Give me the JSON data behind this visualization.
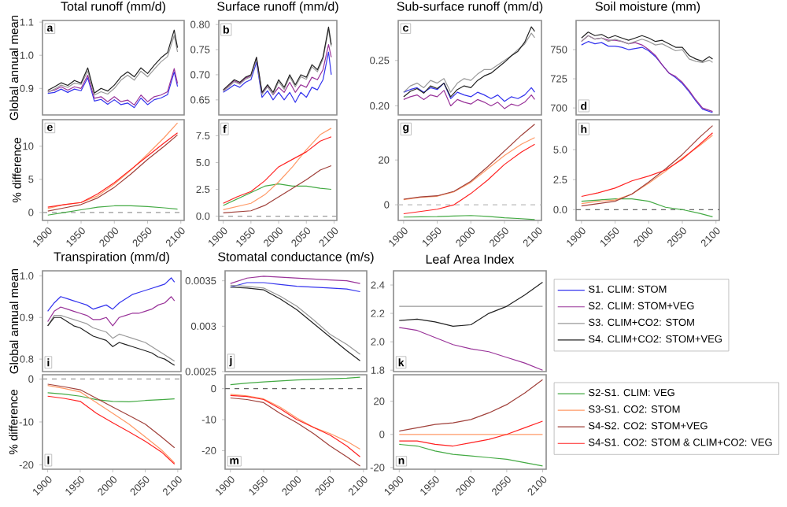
{
  "chart_data": [
    {
      "type": "line",
      "title": "Total runoff (mm/d)",
      "ylabel": "Global annual mean",
      "annotations": [
        "a"
      ],
      "tick_labels": "y",
      "xlim": [
        1892,
        2105
      ],
      "xticks": [
        1900,
        1950,
        2000,
        2050,
        2100
      ],
      "ylim": [
        0.82,
        1.105
      ],
      "yticks": [
        0.9,
        {
          "value": 1.0,
          "label": "1.0"
        },
        1.1
      ],
      "x": [
        1900,
        1910,
        1920,
        1930,
        1940,
        1950,
        1960,
        1970,
        1980,
        1990,
        2000,
        2010,
        2020,
        2030,
        2040,
        2050,
        2060,
        2070,
        2080,
        2090,
        2095
      ],
      "series": [
        {
          "color": "#3333ee",
          "values": [
            0.885,
            0.888,
            0.898,
            0.888,
            0.898,
            0.893,
            0.932,
            0.862,
            0.867,
            0.852,
            0.866,
            0.851,
            0.856,
            0.842,
            0.871,
            0.851,
            0.866,
            0.871,
            0.881,
            0.95,
            0.906
          ]
        },
        {
          "color": "#993399",
          "values": [
            0.89,
            0.895,
            0.905,
            0.895,
            0.905,
            0.9,
            0.94,
            0.87,
            0.875,
            0.86,
            0.875,
            0.86,
            0.865,
            0.85,
            0.88,
            0.86,
            0.875,
            0.88,
            0.89,
            0.96,
            0.915
          ]
        },
        {
          "color": "#999999",
          "values": [
            0.888,
            0.898,
            0.91,
            0.903,
            0.916,
            0.912,
            0.952,
            0.88,
            0.89,
            0.883,
            0.9,
            0.925,
            0.94,
            0.925,
            0.952,
            0.935,
            0.958,
            0.98,
            0.996,
            1.06,
            1.01
          ]
        },
        {
          "color": "#222222",
          "values": [
            0.894,
            0.905,
            0.917,
            0.909,
            0.924,
            0.916,
            0.962,
            0.886,
            0.9,
            0.892,
            0.91,
            0.935,
            0.95,
            0.935,
            0.962,
            0.945,
            0.97,
            0.992,
            1.008,
            1.076,
            1.023
          ]
        }
      ]
    },
    {
      "type": "line",
      "title": "Surface runoff (mm/d)",
      "annotations": [
        "b"
      ],
      "tick_labels": "y",
      "xlim": [
        1892,
        2105
      ],
      "xticks": [
        1900,
        1950,
        2000,
        2050,
        2100
      ],
      "ylim": [
        0.62,
        0.808
      ],
      "yticks": [
        0.65,
        {
          "value": 0.7,
          "label": "0.70"
        },
        0.75,
        {
          "value": 0.8,
          "label": "0.80"
        }
      ],
      "x": [
        1900,
        1910,
        1920,
        1930,
        1940,
        1950,
        1960,
        1970,
        1980,
        1990,
        2000,
        2010,
        2020,
        2030,
        2040,
        2050,
        2060,
        2070,
        2080,
        2090,
        2095
      ],
      "series": [
        {
          "color": "#3333ee",
          "values": [
            0.665,
            0.672,
            0.68,
            0.675,
            0.685,
            0.69,
            0.725,
            0.655,
            0.668,
            0.65,
            0.665,
            0.65,
            0.665,
            0.645,
            0.665,
            0.655,
            0.675,
            0.67,
            0.69,
            0.745,
            0.7
          ]
        },
        {
          "color": "#993399",
          "values": [
            0.668,
            0.678,
            0.688,
            0.683,
            0.693,
            0.698,
            0.733,
            0.663,
            0.677,
            0.66,
            0.675,
            0.665,
            0.685,
            0.665,
            0.68,
            0.675,
            0.695,
            0.69,
            0.71,
            0.76,
            0.735
          ]
        },
        {
          "color": "#999999",
          "values": [
            0.667,
            0.676,
            0.686,
            0.681,
            0.691,
            0.696,
            0.731,
            0.661,
            0.676,
            0.661,
            0.686,
            0.671,
            0.696,
            0.676,
            0.696,
            0.691,
            0.716,
            0.706,
            0.731,
            0.79,
            0.756
          ]
        },
        {
          "color": "#222222",
          "values": [
            0.67,
            0.68,
            0.69,
            0.685,
            0.695,
            0.7,
            0.735,
            0.665,
            0.68,
            0.665,
            0.69,
            0.675,
            0.7,
            0.68,
            0.7,
            0.695,
            0.72,
            0.71,
            0.735,
            0.795,
            0.76
          ]
        }
      ]
    },
    {
      "type": "line",
      "title": "Sub-surface runoff (mm/d)",
      "annotations": [
        "c"
      ],
      "tick_labels": "y",
      "xlim": [
        1892,
        2105
      ],
      "xticks": [
        1900,
        1950,
        2000,
        2050,
        2100
      ],
      "ylim": [
        0.19,
        0.294
      ],
      "yticks": [
        {
          "value": 0.2,
          "label": "0.20"
        },
        0.25
      ],
      "x": [
        1900,
        1910,
        1920,
        1930,
        1940,
        1950,
        1960,
        1970,
        1980,
        1990,
        2000,
        2010,
        2020,
        2030,
        2040,
        2050,
        2060,
        2070,
        2080,
        2090,
        2095
      ],
      "series": [
        {
          "color": "#3333ee",
          "values": [
            0.215,
            0.218,
            0.22,
            0.215,
            0.22,
            0.218,
            0.225,
            0.208,
            0.215,
            0.212,
            0.21,
            0.215,
            0.212,
            0.208,
            0.212,
            0.205,
            0.21,
            0.208,
            0.212,
            0.22,
            0.215
          ]
        },
        {
          "color": "#993399",
          "values": [
            0.207,
            0.21,
            0.212,
            0.207,
            0.212,
            0.21,
            0.217,
            0.2,
            0.207,
            0.204,
            0.202,
            0.207,
            0.204,
            0.2,
            0.204,
            0.197,
            0.202,
            0.2,
            0.204,
            0.212,
            0.207
          ]
        },
        {
          "color": "#999999",
          "values": [
            0.215,
            0.222,
            0.225,
            0.22,
            0.228,
            0.225,
            0.23,
            0.215,
            0.225,
            0.23,
            0.228,
            0.235,
            0.24,
            0.24,
            0.245,
            0.25,
            0.255,
            0.262,
            0.268,
            0.28,
            0.275
          ]
        },
        {
          "color": "#222222",
          "values": [
            0.21,
            0.216,
            0.219,
            0.214,
            0.222,
            0.219,
            0.225,
            0.21,
            0.218,
            0.222,
            0.22,
            0.228,
            0.233,
            0.236,
            0.242,
            0.248,
            0.255,
            0.26,
            0.27,
            0.287,
            0.282
          ]
        }
      ]
    },
    {
      "type": "line",
      "title": "Soil moisture (mm)",
      "annotations": [
        "d"
      ],
      "tick_labels": "y",
      "xlim": [
        1892,
        2105
      ],
      "xticks": [
        1900,
        1950,
        2000,
        2050,
        2100
      ],
      "ylim": [
        694,
        775
      ],
      "yticks": [
        700,
        725,
        750
      ],
      "x": [
        1900,
        1910,
        1920,
        1930,
        1940,
        1950,
        1960,
        1970,
        1980,
        1990,
        2000,
        2010,
        2020,
        2030,
        2040,
        2050,
        2060,
        2070,
        2080,
        2090,
        2095
      ],
      "series": [
        {
          "color": "#3333ee",
          "values": [
            754,
            757,
            755,
            756,
            753,
            753,
            752,
            750,
            751,
            752,
            749,
            744,
            737,
            730,
            726,
            721,
            714,
            706,
            699,
            697,
            696
          ]
        },
        {
          "color": "#993399",
          "values": [
            757,
            762,
            759,
            760,
            758,
            758,
            757,
            755,
            756,
            754,
            750,
            745,
            737,
            730,
            727,
            722,
            715,
            707,
            700,
            698,
            697
          ]
        },
        {
          "color": "#999999",
          "values": [
            757,
            762,
            759,
            760,
            757,
            759,
            757,
            755,
            757,
            759,
            757,
            754,
            755,
            752,
            749,
            750,
            742,
            740,
            739,
            741,
            739
          ]
        },
        {
          "color": "#222222",
          "values": [
            760,
            765,
            762,
            763,
            760,
            762,
            760,
            758,
            760,
            762,
            760,
            757,
            758,
            755,
            752,
            752,
            745,
            742,
            740,
            744,
            742
          ]
        }
      ]
    },
    {
      "type": "line",
      "ylabel": "% difference",
      "annotations": [
        "e"
      ],
      "xlim": [
        1892,
        2105
      ],
      "xticks": [
        1900,
        1950,
        2000,
        2050,
        2100
      ],
      "ylim": [
        -1.2,
        14
      ],
      "yticks": [
        0,
        5,
        10
      ],
      "ref_lines": [
        {
          "axis": "y",
          "value": 0,
          "color": "#999999",
          "line_style": "dashed"
        }
      ],
      "x": [
        1900,
        1925,
        1950,
        1975,
        2000,
        2025,
        2050,
        2075,
        2095
      ],
      "series": [
        {
          "color": "#44aa44",
          "values": [
            -0.4,
            0,
            0.4,
            0.8,
            1.0,
            1.0,
            0.9,
            0.7,
            0.5
          ]
        },
        {
          "color": "#ff9966",
          "values": [
            0.6,
            1.2,
            1.5,
            2.5,
            4.3,
            6.4,
            8.8,
            11.3,
            13.5
          ]
        },
        {
          "color": "#a0403a",
          "values": [
            0.2,
            0.7,
            1.2,
            2.2,
            3.8,
            5.8,
            8.0,
            10.0,
            11.7
          ]
        },
        {
          "color": "#ff2222",
          "values": [
            0.8,
            1.2,
            1.5,
            2.8,
            4.5,
            6.5,
            8.5,
            10.5,
            12.0
          ]
        }
      ]
    },
    {
      "type": "line",
      "annotations": [
        "f"
      ],
      "xlim": [
        1892,
        2105
      ],
      "xticks": [
        1900,
        1950,
        2000,
        2050,
        2100
      ],
      "ylim": [
        -0.4,
        9
      ],
      "yticks": [
        {
          "value": 0,
          "label": "0.0"
        },
        2.5,
        {
          "value": 5,
          "label": "5.0"
        },
        7.5
      ],
      "ref_lines": [
        {
          "axis": "y",
          "value": 0,
          "color": "#999999",
          "line_style": "dashed"
        }
      ],
      "x": [
        1900,
        1925,
        1950,
        1975,
        2000,
        2025,
        2050,
        2075,
        2095
      ],
      "series": [
        {
          "color": "#44aa44",
          "values": [
            1.0,
            1.6,
            2.2,
            2.8,
            3.0,
            2.8,
            2.8,
            2.6,
            2.5
          ]
        },
        {
          "color": "#ff9966",
          "values": [
            0.6,
            0.9,
            1.2,
            2.0,
            3.2,
            4.6,
            6.2,
            7.6,
            8.2
          ]
        },
        {
          "color": "#a0403a",
          "values": [
            0.3,
            0.4,
            0.5,
            1.0,
            1.8,
            2.6,
            3.4,
            4.3,
            4.7
          ]
        },
        {
          "color": "#ff2222",
          "values": [
            1.2,
            1.8,
            2.3,
            3.3,
            4.6,
            5.3,
            6.0,
            7.0,
            7.4
          ]
        }
      ]
    },
    {
      "type": "line",
      "annotations": [
        "g"
      ],
      "xlim": [
        1892,
        2105
      ],
      "xticks": [
        1900,
        1950,
        2000,
        2050,
        2100
      ],
      "ylim": [
        -7,
        38
      ],
      "yticks": [
        0,
        20
      ],
      "ref_lines": [
        {
          "axis": "y",
          "value": 0,
          "color": "#bbbbbb",
          "line_style": "dashed"
        }
      ],
      "x": [
        1900,
        1925,
        1950,
        1975,
        2000,
        2025,
        2050,
        2075,
        2095
      ],
      "series": [
        {
          "color": "#44aa44",
          "values": [
            -5.5,
            -5.4,
            -5.3,
            -5.0,
            -4.8,
            -5.2,
            -5.8,
            -6.2,
            -6.6
          ]
        },
        {
          "color": "#ff9966",
          "values": [
            2.3,
            3.3,
            3.8,
            5.8,
            10,
            16,
            22,
            27,
            30
          ]
        },
        {
          "color": "#a0403a",
          "values": [
            2.5,
            3.5,
            4,
            6,
            10.5,
            17,
            24,
            31,
            36
          ]
        },
        {
          "color": "#ff2222",
          "values": [
            -4,
            -3,
            -2,
            0,
            5,
            11,
            18,
            23.5,
            27
          ]
        }
      ]
    },
    {
      "type": "line",
      "annotations": [
        "h"
      ],
      "xlim": [
        1892,
        2105
      ],
      "xticks": [
        1900,
        1950,
        2000,
        2050,
        2100
      ],
      "ylim": [
        -0.9,
        7.5
      ],
      "yticks": [
        {
          "value": 0,
          "label": "0.0"
        },
        2.5,
        {
          "value": 5,
          "label": "5.0"
        }
      ],
      "ref_lines": [
        {
          "axis": "y",
          "value": 0,
          "color": "#666666",
          "line_style": "dashed"
        }
      ],
      "x": [
        1900,
        1925,
        1950,
        1975,
        2000,
        2025,
        2050,
        2075,
        2095
      ],
      "series": [
        {
          "color": "#44aa44",
          "values": [
            0.7,
            0.8,
            0.9,
            0.9,
            0.7,
            0.2,
            0.0,
            -0.3,
            -0.6
          ]
        },
        {
          "color": "#ff9966",
          "values": [
            0.5,
            0.7,
            0.8,
            1.3,
            2.2,
            3.2,
            4.3,
            5.3,
            6.2
          ]
        },
        {
          "color": "#a0403a",
          "values": [
            0.3,
            0.5,
            0.7,
            1.3,
            2.3,
            3.4,
            4.6,
            6.0,
            7.0
          ]
        },
        {
          "color": "#ff2222",
          "values": [
            1.1,
            1.4,
            1.8,
            2.4,
            2.8,
            3.3,
            4.2,
            5.4,
            6.4
          ]
        }
      ]
    },
    {
      "type": "line",
      "title": "Transpiration (mm/d)",
      "ylabel": "Global annual mean",
      "annotations": [
        "i"
      ],
      "tick_labels": "y",
      "xlim": [
        1892,
        2105
      ],
      "xticks": [
        1900,
        1950,
        2000,
        2050,
        2100
      ],
      "ylim": [
        0.77,
        1.012
      ],
      "yticks": [
        0.8,
        0.9,
        {
          "value": 1.0,
          "label": "1.0"
        }
      ],
      "x": [
        1900,
        1910,
        1920,
        1930,
        1940,
        1950,
        1960,
        1970,
        1980,
        1990,
        2000,
        2010,
        2020,
        2030,
        2040,
        2050,
        2060,
        2070,
        2080,
        2090,
        2095
      ],
      "series": [
        {
          "color": "#3333ee",
          "values": [
            0.915,
            0.935,
            0.95,
            0.945,
            0.94,
            0.935,
            0.93,
            0.92,
            0.925,
            0.93,
            0.92,
            0.935,
            0.945,
            0.955,
            0.96,
            0.965,
            0.97,
            0.975,
            0.98,
            0.995,
            0.985
          ]
        },
        {
          "color": "#993399",
          "values": [
            0.89,
            0.915,
            0.925,
            0.92,
            0.915,
            0.91,
            0.905,
            0.895,
            0.895,
            0.9,
            0.88,
            0.9,
            0.905,
            0.91,
            0.91,
            0.915,
            0.92,
            0.93,
            0.935,
            0.95,
            0.94
          ]
        },
        {
          "color": "#999999",
          "values": [
            0.88,
            0.905,
            0.905,
            0.9,
            0.895,
            0.89,
            0.885,
            0.875,
            0.87,
            0.865,
            0.85,
            0.86,
            0.855,
            0.85,
            0.845,
            0.84,
            0.83,
            0.82,
            0.81,
            0.8,
            0.795
          ]
        },
        {
          "color": "#222222",
          "values": [
            0.88,
            0.9,
            0.9,
            0.89,
            0.88,
            0.875,
            0.865,
            0.855,
            0.85,
            0.845,
            0.83,
            0.84,
            0.835,
            0.83,
            0.825,
            0.82,
            0.815,
            0.805,
            0.8,
            0.79,
            0.785
          ]
        }
      ]
    },
    {
      "type": "line",
      "title": "Stomatal conductance (m/s)",
      "annotations": [
        "j"
      ],
      "tick_labels": "y",
      "xlim": [
        1892,
        2105
      ],
      "xticks": [
        1900,
        1950,
        2000,
        2050,
        2100
      ],
      "ylim": [
        0.0025,
        0.00361
      ],
      "yticks": [
        0.0025,
        0.003,
        0.0035
      ],
      "x": [
        1900,
        1925,
        1950,
        1975,
        2000,
        2025,
        2050,
        2075,
        2095
      ],
      "series": [
        {
          "color": "#3333ee",
          "values": [
            0.00343,
            0.00348,
            0.00348,
            0.00346,
            0.00344,
            0.00343,
            0.00342,
            0.00341,
            0.00338
          ]
        },
        {
          "color": "#993399",
          "values": [
            0.00347,
            0.00353,
            0.00355,
            0.00354,
            0.00353,
            0.00352,
            0.00351,
            0.0035,
            0.00347
          ]
        },
        {
          "color": "#999999",
          "values": [
            0.00345,
            0.00344,
            0.00342,
            0.00333,
            0.00322,
            0.00307,
            0.00291,
            0.0028,
            0.00269
          ]
        },
        {
          "color": "#222222",
          "values": [
            0.00343,
            0.00342,
            0.0034,
            0.0033,
            0.00318,
            0.00303,
            0.00288,
            0.00273,
            0.00262
          ]
        }
      ]
    },
    {
      "type": "line",
      "title": "Leaf Area Index",
      "annotations": [
        "k"
      ],
      "tick_labels": "y",
      "legend": "right",
      "xlim": [
        1892,
        2105
      ],
      "xticks": [
        1900,
        1950,
        2000,
        2050,
        2100
      ],
      "ylim": [
        1.79,
        2.5
      ],
      "yticks": [
        1.8,
        {
          "value": 2.0,
          "label": "2.0"
        },
        2.2,
        2.4
      ],
      "x": [
        1900,
        1925,
        1950,
        1975,
        2000,
        2025,
        2050,
        2075,
        2100
      ],
      "series": [
        {
          "name": "S1. CLIM: STOM",
          "color": "#3333ee",
          "values": [
            null,
            null,
            null,
            null,
            null,
            null,
            null,
            null,
            null
          ]
        },
        {
          "name": "S2. CLIM: STOM+VEG",
          "color": "#993399",
          "values": [
            2.1,
            2.08,
            2.03,
            1.98,
            1.95,
            1.93,
            1.89,
            1.85,
            1.8
          ]
        },
        {
          "name": "S3. CLIM+CO2: STOM",
          "color": "#999999",
          "values": [
            2.25,
            2.25,
            2.25,
            2.25,
            2.25,
            2.25,
            2.25,
            2.25,
            2.25
          ]
        },
        {
          "name": "S4. CLIM+CO2: STOM+VEG",
          "color": "#222222",
          "values": [
            2.15,
            2.16,
            2.14,
            2.11,
            2.12,
            2.2,
            2.25,
            2.33,
            2.42
          ]
        }
      ]
    },
    {
      "type": "line",
      "ylabel": "% difference",
      "annotations": [
        "l"
      ],
      "xlim": [
        1892,
        2105
      ],
      "xticks": [
        1900,
        1950,
        2000,
        2050,
        2100
      ],
      "ylim": [
        -21,
        1
      ],
      "yticks": [
        -20,
        -10,
        0
      ],
      "ref_lines": [
        {
          "axis": "y",
          "value": 0,
          "color": "#999999",
          "line_style": "dashed"
        }
      ],
      "x": [
        1900,
        1925,
        1950,
        1975,
        2000,
        2025,
        2050,
        2075,
        2095
      ],
      "series": [
        {
          "color": "#44aa44",
          "values": [
            -3.2,
            -3.5,
            -4,
            -4.8,
            -5.2,
            -5.3,
            -5.0,
            -4.8,
            -4.6
          ]
        },
        {
          "color": "#ff9966",
          "values": [
            -1.5,
            -2.2,
            -3.0,
            -5.5,
            -8,
            -10.5,
            -13.5,
            -16.5,
            -19.5
          ]
        },
        {
          "color": "#a0403a",
          "values": [
            -1.2,
            -1.8,
            -2.5,
            -4.5,
            -6.5,
            -8.5,
            -10.5,
            -13.5,
            -16
          ]
        },
        {
          "color": "#ff2222",
          "values": [
            -4,
            -4.5,
            -5.2,
            -8,
            -10.2,
            -12.3,
            -14.5,
            -17,
            -19.8
          ]
        }
      ]
    },
    {
      "type": "line",
      "annotations": [
        "m"
      ],
      "xlim": [
        1892,
        2105
      ],
      "xticks": [
        1900,
        1950,
        2000,
        2050,
        2100
      ],
      "ylim": [
        -26,
        4.5
      ],
      "yticks": [
        -20,
        -10,
        0
      ],
      "ref_lines": [
        {
          "axis": "y",
          "value": 0,
          "color": "#666666",
          "line_style": "dashed"
        }
      ],
      "x": [
        1900,
        1925,
        1950,
        1975,
        2000,
        2025,
        2050,
        2075,
        2095
      ],
      "series": [
        {
          "color": "#44aa44",
          "values": [
            1.3,
            1.8,
            2.2,
            2.5,
            2.8,
            3.0,
            3.2,
            3.4,
            3.7
          ]
        },
        {
          "color": "#ff9966",
          "values": [
            -1.8,
            -2.3,
            -3.3,
            -6,
            -9.5,
            -12.5,
            -14.5,
            -17,
            -19.5
          ]
        },
        {
          "color": "#a0403a",
          "values": [
            -3,
            -3.5,
            -4.5,
            -8,
            -11,
            -14.5,
            -18.5,
            -22,
            -25
          ]
        },
        {
          "color": "#ff2222",
          "values": [
            -2.2,
            -2.5,
            -3.5,
            -6.5,
            -10,
            -12.5,
            -15,
            -18.5,
            -22
          ]
        }
      ]
    },
    {
      "type": "line",
      "annotations": [
        "n"
      ],
      "legend": "right",
      "xlim": [
        1892,
        2105
      ],
      "xticks": [
        1900,
        1950,
        2000,
        2050,
        2100
      ],
      "ylim": [
        -21,
        36
      ],
      "yticks": [
        -20,
        0,
        20
      ],
      "x": [
        1900,
        1925,
        1950,
        1975,
        2000,
        2025,
        2050,
        2075,
        2100
      ],
      "series": [
        {
          "name": "S2-S1. CLIM: VEG",
          "color": "#44aa44",
          "values": [
            -6,
            -7,
            -10,
            -12,
            -13,
            -14,
            -15,
            -17,
            -19
          ]
        },
        {
          "name": "S3-S1. CO2: STOM",
          "color": "#ff9966",
          "values": [
            0,
            0,
            0,
            0,
            0,
            0,
            0,
            0,
            0
          ]
        },
        {
          "name": "S4-S2. CO2: STOM+VEG",
          "color": "#a0403a",
          "values": [
            2,
            4,
            6,
            7,
            9,
            13,
            18,
            25,
            33
          ]
        },
        {
          "name": "S4-S1. CO2: STOM & CLIM+CO2: VEG",
          "color": "#ff2222",
          "values": [
            -4,
            -4,
            -6,
            -7,
            -5,
            -3,
            0,
            4,
            8
          ]
        }
      ]
    }
  ]
}
